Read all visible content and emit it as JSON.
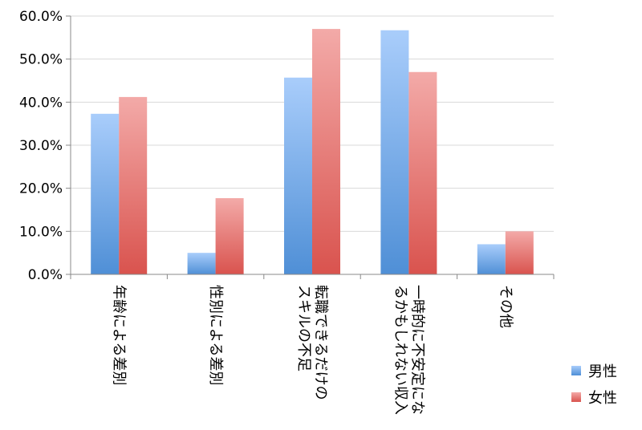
{
  "chart_data": {
    "type": "bar",
    "categories": [
      "年齢による差別",
      "性別による差別",
      "転職できるだけのスキルの不足",
      "一時的に不安定になるかもしれない収入",
      "その他"
    ],
    "category_lines": [
      [
        "年齢による差別"
      ],
      [
        "性別による差別"
      ],
      [
        "転職できるだけの",
        "スキルの不足"
      ],
      [
        "一時的に不安定にな",
        "るかもしれない収入"
      ],
      [
        "その他"
      ]
    ],
    "series": [
      {
        "name": "男性",
        "values": [
          37.3,
          5.0,
          45.7,
          56.7,
          7.0
        ],
        "color": "#5b9bd5"
      },
      {
        "name": "女性",
        "values": [
          41.2,
          17.7,
          57.0,
          47.0,
          10.0
        ],
        "color": "#e06666"
      }
    ],
    "yticks": [
      "0.0%",
      "10.0%",
      "20.0%",
      "30.0%",
      "40.0%",
      "50.0%",
      "60.0%"
    ],
    "ylim": [
      0,
      60
    ],
    "grid": true,
    "legend_position": "bottom-right"
  }
}
